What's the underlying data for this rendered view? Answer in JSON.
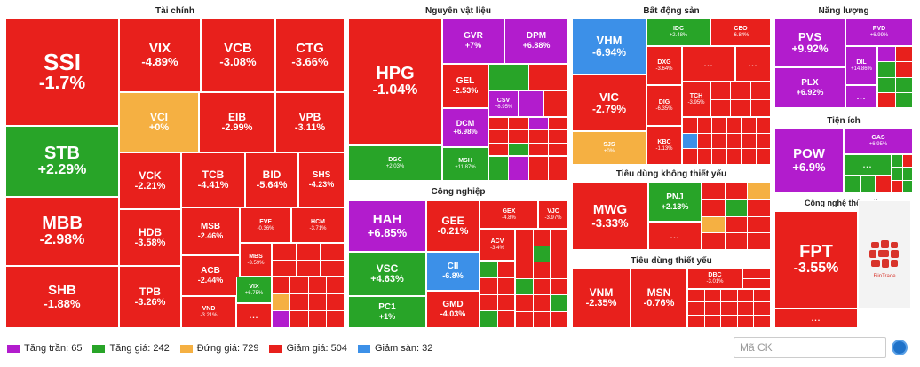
{
  "colors": {
    "ceiling": "#b21ccd",
    "up": "#28a428",
    "flat": "#f5b042",
    "down": "#e8201c",
    "floor": "#3c90e8"
  },
  "sectors": {
    "tai_chinh": "Tài chính",
    "nguyen_vat_lieu": "Nguyên vật liệu",
    "cong_nghiep": "Công nghiệp",
    "bat_dong_san": "Bất động sản",
    "tieu_dung_ktx": "Tiêu dùng không thiết yếu",
    "tieu_dung_ty": "Tiêu dùng thiết yếu",
    "nang_luong": "Năng lượng",
    "tien_ich": "Tiện ích",
    "cntt": "Công nghệ thông tin"
  },
  "tiles": {
    "SSI": {
      "sym": "SSI",
      "pct": "-1.7%"
    },
    "STB": {
      "sym": "STB",
      "pct": "+2.29%"
    },
    "MBB": {
      "sym": "MBB",
      "pct": "-2.98%"
    },
    "SHB": {
      "sym": "SHB",
      "pct": "-1.88%"
    },
    "VIX": {
      "sym": "VIX",
      "pct": "-4.89%"
    },
    "VCB": {
      "sym": "VCB",
      "pct": "-3.08%"
    },
    "CTG": {
      "sym": "CTG",
      "pct": "-3.66%"
    },
    "VCI": {
      "sym": "VCI",
      "pct": "+0%"
    },
    "EIB": {
      "sym": "EIB",
      "pct": "-2.99%"
    },
    "VPB": {
      "sym": "VPB",
      "pct": "-3.11%"
    },
    "VCK": {
      "sym": "VCK",
      "pct": "-2.21%"
    },
    "TCB": {
      "sym": "TCB",
      "pct": "-4.41%"
    },
    "BID": {
      "sym": "BID",
      "pct": "-5.64%"
    },
    "SHS": {
      "sym": "SHS",
      "pct": "-4.23%"
    },
    "HDB": {
      "sym": "HDB",
      "pct": "-3.58%"
    },
    "MSB": {
      "sym": "MSB",
      "pct": "-2.46%"
    },
    "EVF": {
      "sym": "EVF",
      "pct": "-0.36%"
    },
    "HCM": {
      "sym": "HCM",
      "pct": "-3.71%"
    },
    "ACB": {
      "sym": "ACB",
      "pct": "-2.44%"
    },
    "MBS": {
      "sym": "MBS",
      "pct": "-3.59%"
    },
    "TPB": {
      "sym": "TPB",
      "pct": "-3.26%"
    },
    "VND": {
      "sym": "VND",
      "pct": "-3.21%"
    },
    "VIX2": {
      "sym": "VIX",
      "pct": "+6.75%"
    },
    "HPG": {
      "sym": "HPG",
      "pct": "-1.04%"
    },
    "GVR": {
      "sym": "GVR",
      "pct": "+7%"
    },
    "DPM": {
      "sym": "DPM",
      "pct": "+6.88%"
    },
    "GEL": {
      "sym": "GEL",
      "pct": "-2.53%"
    },
    "CSV": {
      "sym": "CSV",
      "pct": "+6.95%"
    },
    "DCM": {
      "sym": "DCM",
      "pct": "+6.98%"
    },
    "DGC": {
      "sym": "DGC",
      "pct": "+2.03%"
    },
    "MSH": {
      "sym": "MSH",
      "pct": "+11.87%"
    },
    "HAH": {
      "sym": "HAH",
      "pct": "+6.85%"
    },
    "GEE": {
      "sym": "GEE",
      "pct": "-0.21%"
    },
    "GEX": {
      "sym": "GEX",
      "pct": "-4.8%"
    },
    "VJC": {
      "sym": "VJC",
      "pct": "-3.97%"
    },
    "ACV": {
      "sym": "ACV",
      "pct": "-3.4%"
    },
    "VSC": {
      "sym": "VSC",
      "pct": "+4.63%"
    },
    "CII": {
      "sym": "CII",
      "pct": "-6.8%"
    },
    "PC1": {
      "sym": "PC1",
      "pct": "+1%"
    },
    "GMD": {
      "sym": "GMD",
      "pct": "-4.03%"
    },
    "VHM": {
      "sym": "VHM",
      "pct": "-6.94%"
    },
    "IDC": {
      "sym": "IDC",
      "pct": "+2.48%"
    },
    "CEO": {
      "sym": "CEO",
      "pct": "-6.84%"
    },
    "DXG": {
      "sym": "DXG",
      "pct": "-3.64%"
    },
    "VIC": {
      "sym": "VIC",
      "pct": "-2.79%"
    },
    "DIG": {
      "sym": "DIG",
      "pct": "-6.35%"
    },
    "TCH": {
      "sym": "TCH",
      "pct": "-3.95%"
    },
    "SJS": {
      "sym": "SJS",
      "pct": "+0%"
    },
    "KBC": {
      "sym": "KBC",
      "pct": "-1.13%"
    },
    "MWG": {
      "sym": "MWG",
      "pct": "-3.33%"
    },
    "PNJ": {
      "sym": "PNJ",
      "pct": "+2.13%"
    },
    "VNM": {
      "sym": "VNM",
      "pct": "-2.35%"
    },
    "MSN": {
      "sym": "MSN",
      "pct": "-0.76%"
    },
    "DBC": {
      "sym": "DBC",
      "pct": "-3.01%"
    },
    "PVS": {
      "sym": "PVS",
      "pct": "+9.92%"
    },
    "PVD": {
      "sym": "PVD",
      "pct": "+6.99%"
    },
    "DIL": {
      "sym": "DIL",
      "pct": "+14.86%"
    },
    "PLX": {
      "sym": "PLX",
      "pct": "+6.92%"
    },
    "POW": {
      "sym": "POW",
      "pct": "+6.9%"
    },
    "GAS": {
      "sym": "GAS",
      "pct": "+6.95%"
    },
    "FPT": {
      "sym": "FPT",
      "pct": "-3.55%"
    }
  },
  "more_label": "...",
  "legend": [
    {
      "label": "Tăng trần: 65",
      "color": "#b21ccd"
    },
    {
      "label": "Tăng giá: 242",
      "color": "#28a428"
    },
    {
      "label": "Đứng giá: 729",
      "color": "#f5b042"
    },
    {
      "label": "Giảm giá: 504",
      "color": "#e8201c"
    },
    {
      "label": "Giảm sàn: 32",
      "color": "#3c90e8"
    }
  ],
  "search": {
    "placeholder": "Mã CK"
  },
  "logo_text": "FiinTrade"
}
